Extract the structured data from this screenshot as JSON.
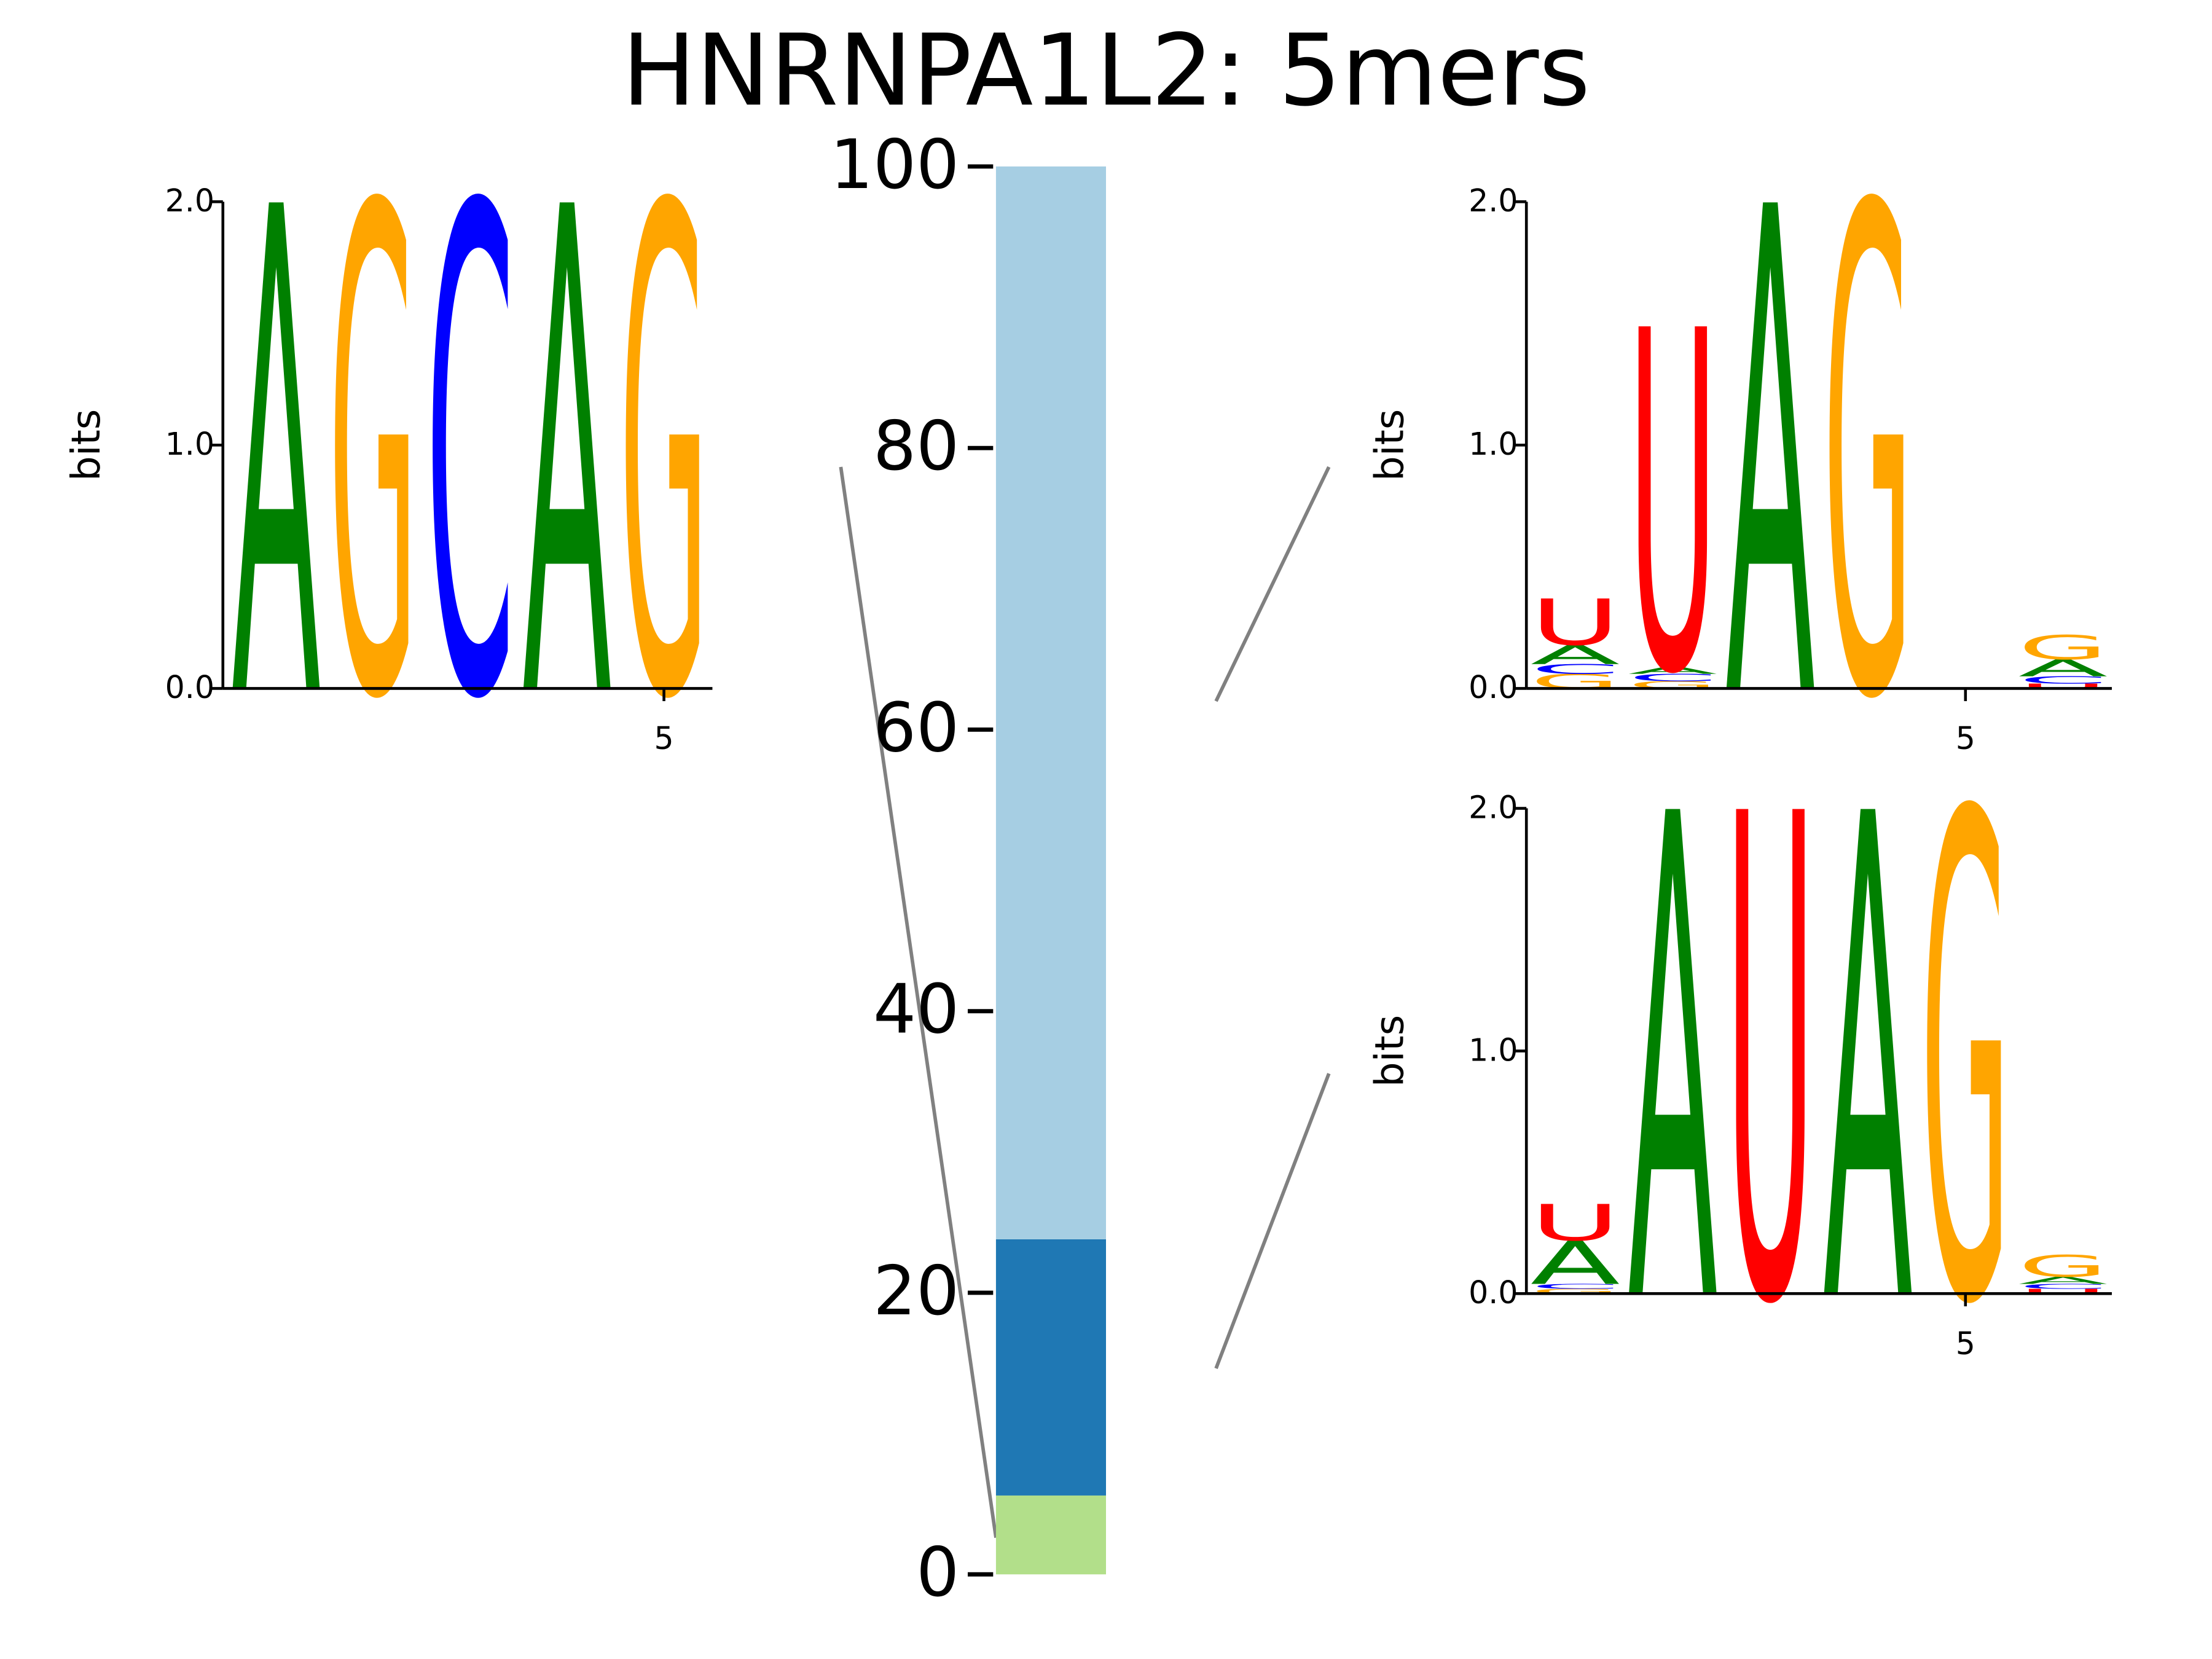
{
  "chart_data": [
    {
      "type": "stacked-bar",
      "title": "HNRNPA1L2: 5mers",
      "values": [
        5.6,
        18.2,
        76.2
      ],
      "colors": [
        "#b2df8a",
        "#1f78b4",
        "#a6cee3"
      ],
      "ylim": [
        0,
        100
      ],
      "yticks": [
        0,
        20,
        40,
        60,
        80,
        100
      ]
    },
    {
      "type": "logo",
      "ylabel": "bits",
      "xlim": [
        0.45,
        5.5
      ],
      "ylim": [
        0,
        2
      ],
      "yticks": [
        {
          "value": 0,
          "label": "0.0"
        },
        {
          "value": 1,
          "label": "1.0"
        },
        {
          "value": 2,
          "label": "2.0"
        }
      ],
      "xticks": [
        5
      ],
      "colors": {
        "A": "#008000",
        "C": "#0000ff",
        "G": "#ffa500",
        "U": "#ff0000"
      },
      "columns": [
        {
          "letters": [
            "A"
          ],
          "heights": [
            2.0
          ]
        },
        {
          "letters": [
            "G"
          ],
          "heights": [
            2.0
          ]
        },
        {
          "letters": [
            "C"
          ],
          "heights": [
            2.0
          ]
        },
        {
          "letters": [
            "A"
          ],
          "heights": [
            2.0
          ]
        },
        {
          "letters": [
            "G"
          ],
          "heights": [
            2.0
          ]
        }
      ]
    },
    {
      "type": "logo",
      "ylabel": "bits",
      "xlim": [
        0.5,
        6.5
      ],
      "ylim": [
        0,
        2
      ],
      "yticks": [
        {
          "value": 0,
          "label": "0.0"
        },
        {
          "value": 1,
          "label": "1.0"
        },
        {
          "value": 2,
          "label": "2.0"
        }
      ],
      "xticks": [
        5
      ],
      "colors": {
        "A": "#008000",
        "C": "#0000ff",
        "G": "#ffa500",
        "U": "#ff0000"
      },
      "columns": [
        {
          "letters": [
            "G",
            "C",
            "A",
            "U"
          ],
          "heights": [
            0.06,
            0.04,
            0.08,
            0.19
          ]
        },
        {
          "letters": [
            "G",
            "C",
            "A",
            "U"
          ],
          "heights": [
            0.03,
            0.03,
            0.03,
            1.4
          ]
        },
        {
          "letters": [
            "A"
          ],
          "heights": [
            2.0
          ]
        },
        {
          "letters": [
            "G"
          ],
          "heights": [
            2.0
          ]
        },
        {
          "letters": [],
          "heights": []
        },
        {
          "letters": [
            "U",
            "C",
            "A",
            "G"
          ],
          "heights": [
            0.02,
            0.03,
            0.07,
            0.1
          ]
        }
      ]
    },
    {
      "type": "logo",
      "ylabel": "bits",
      "xlim": [
        0.5,
        6.5
      ],
      "ylim": [
        0,
        2
      ],
      "yticks": [
        {
          "value": 0,
          "label": "0.0"
        },
        {
          "value": 1,
          "label": "1.0"
        },
        {
          "value": 2,
          "label": "2.0"
        }
      ],
      "xticks": [
        5
      ],
      "colors": {
        "A": "#008000",
        "C": "#0000ff",
        "G": "#ffa500",
        "U": "#ff0000"
      },
      "columns": [
        {
          "letters": [
            "G",
            "C",
            "A",
            "U"
          ],
          "heights": [
            0.02,
            0.02,
            0.18,
            0.15
          ]
        },
        {
          "letters": [
            "A"
          ],
          "heights": [
            2.0
          ]
        },
        {
          "letters": [
            "U"
          ],
          "heights": [
            2.0
          ]
        },
        {
          "letters": [
            "A"
          ],
          "heights": [
            2.0
          ]
        },
        {
          "letters": [
            "G"
          ],
          "heights": [
            2.0
          ]
        },
        {
          "letters": [
            "U",
            "C",
            "A",
            "G"
          ],
          "heights": [
            0.02,
            0.02,
            0.03,
            0.09
          ]
        }
      ]
    }
  ]
}
